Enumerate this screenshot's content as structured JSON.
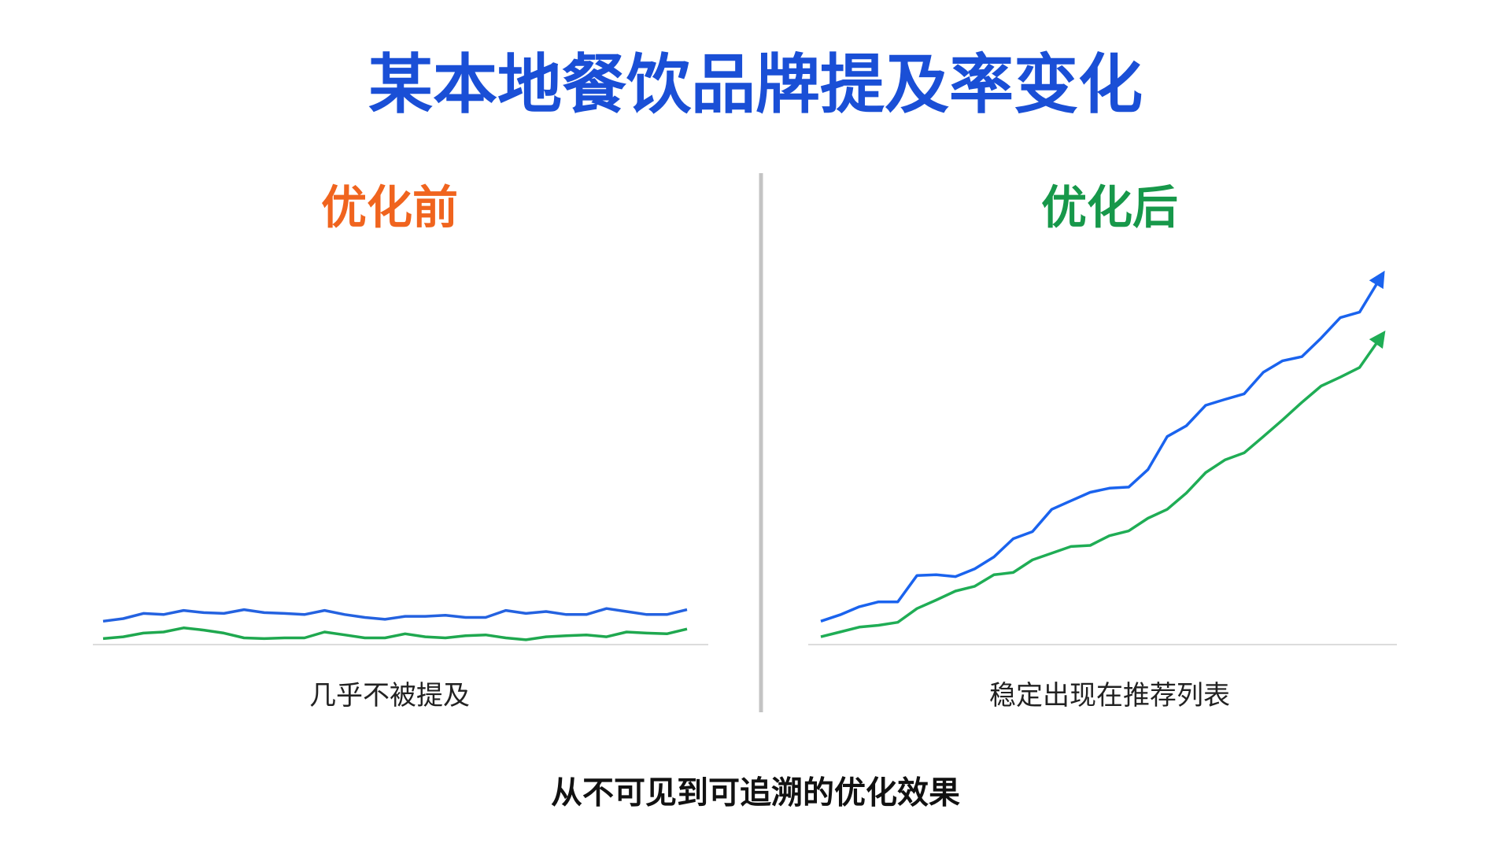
{
  "title": "某本地餐饮品牌提及率变化",
  "footer": "从不可见到可追溯的优化效果",
  "chart_data": [
    {
      "type": "line",
      "title": "优化前",
      "title_color": "#f0641e",
      "caption": "几乎不被提及",
      "ylim": [
        0,
        100
      ],
      "arrows": false,
      "series": [
        {
          "color": "#2462e0",
          "values": [
            6.3,
            7,
            8.4,
            8.1,
            9.2,
            8.6,
            8.4,
            9.4,
            8.6,
            8.4,
            8.1,
            9.2,
            8.1,
            7.3,
            6.8,
            7.6,
            7.6,
            7.9,
            7.3,
            7.3,
            9.2,
            8.4,
            8.9,
            8.1,
            8.1,
            9.7,
            8.9,
            8.1,
            8.1,
            9.4
          ]
        },
        {
          "color": "#1fa84f",
          "values": [
            1.6,
            2.1,
            3.1,
            3.4,
            4.5,
            3.9,
            3.1,
            1.8,
            1.6,
            1.8,
            1.8,
            3.4,
            2.6,
            1.8,
            1.8,
            2.9,
            2.1,
            1.8,
            2.4,
            2.6,
            1.8,
            1.3,
            2.1,
            2.4,
            2.6,
            2.1,
            3.4,
            3.1,
            2.9,
            4.2
          ]
        }
      ]
    },
    {
      "type": "line",
      "title": "优化后",
      "title_color": "#17984a",
      "caption": "稳定出现在推荐列表",
      "ylim": [
        0,
        100
      ],
      "arrows": true,
      "series": [
        {
          "color": "#1a63ee",
          "values": [
            6.3,
            8,
            10.2,
            11.5,
            11.5,
            18.6,
            18.8,
            18.3,
            20.4,
            23.6,
            28.5,
            30.4,
            36.4,
            38.7,
            41,
            42.1,
            42.4,
            47.1,
            56,
            58.9,
            64.4,
            66,
            67.5,
            73.3,
            76.4,
            77.5,
            82.5,
            88,
            89.5,
            98
          ]
        },
        {
          "color": "#1fad55",
          "values": [
            2.1,
            3.4,
            4.7,
            5.2,
            6,
            9.7,
            12,
            14.4,
            15.7,
            18.8,
            19.4,
            22.8,
            24.6,
            26.4,
            26.7,
            29.3,
            30.6,
            34,
            36.4,
            40.8,
            46.3,
            49.7,
            51.6,
            56,
            60.5,
            65.2,
            69.6,
            72,
            74.6,
            82
          ]
        }
      ]
    }
  ]
}
